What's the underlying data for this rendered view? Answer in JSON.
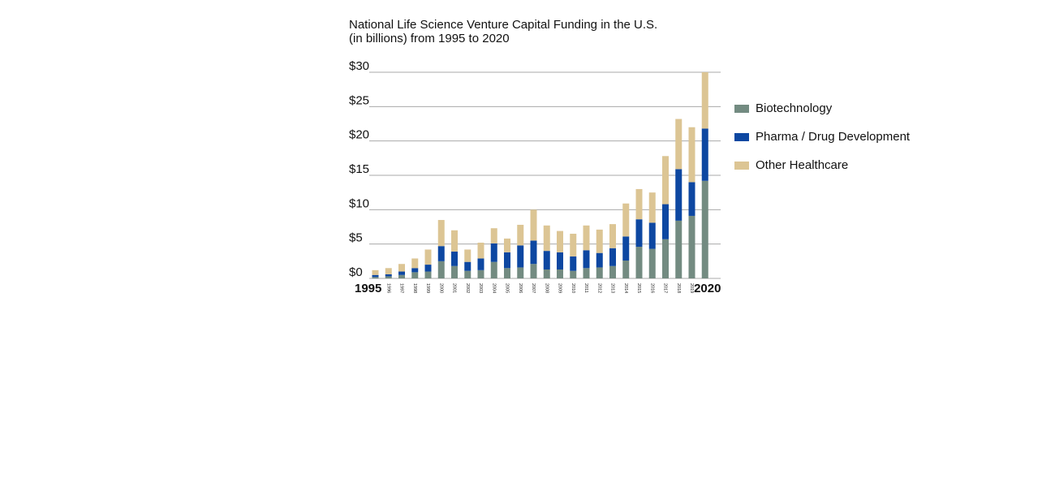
{
  "chart_data": {
    "type": "bar",
    "stacked": true,
    "title": "National Life Science Venture Capital Funding in the U.S.",
    "subtitle": "(in billions) from 1995 to 2020",
    "xlabel": "",
    "ylabel": "",
    "ylim": [
      0,
      30
    ],
    "yticks": [
      "$0",
      "$5",
      "$10",
      "$15",
      "$20",
      "$25",
      "$30"
    ],
    "ytick_values": [
      0,
      5,
      10,
      15,
      20,
      25,
      30
    ],
    "grid": true,
    "legend_position": "right",
    "categories": [
      "1995",
      "1996",
      "1997",
      "1998",
      "1999",
      "2000",
      "2001",
      "2002",
      "2003",
      "2004",
      "2005",
      "2006",
      "2007",
      "2008",
      "2009",
      "2010",
      "2011",
      "2012",
      "2013",
      "2014",
      "2015",
      "2016",
      "2017",
      "2018",
      "2019",
      "2020"
    ],
    "series": [
      {
        "name": "Biotechnology",
        "color": "#738b81",
        "values": [
          0.2,
          0.3,
          0.5,
          0.9,
          1.0,
          2.5,
          1.8,
          1.1,
          1.2,
          2.4,
          1.5,
          1.6,
          2.1,
          1.3,
          1.3,
          1.1,
          1.5,
          1.6,
          1.8,
          2.6,
          4.6,
          4.3,
          5.7,
          8.4,
          9.1,
          14.2
        ]
      },
      {
        "name": "Pharma / Drug Development",
        "color": "#0d47a1",
        "values": [
          0.3,
          0.3,
          0.5,
          0.6,
          1.0,
          2.2,
          2.1,
          1.3,
          1.7,
          2.7,
          2.3,
          3.2,
          3.4,
          2.7,
          2.5,
          2.1,
          2.6,
          2.1,
          2.6,
          3.5,
          4.0,
          3.8,
          5.1,
          7.5,
          4.9,
          7.6
        ]
      },
      {
        "name": "Other Healthcare",
        "color": "#dcc594",
        "values": [
          0.7,
          0.9,
          1.1,
          1.4,
          2.2,
          3.8,
          3.1,
          1.8,
          2.3,
          2.2,
          2.0,
          3.0,
          4.5,
          3.7,
          3.1,
          3.3,
          3.6,
          3.4,
          3.5,
          4.8,
          4.4,
          4.4,
          7.0,
          7.3,
          8.0,
          8.2
        ]
      }
    ],
    "x_tick_major": {
      "1995": true,
      "2020": true
    }
  }
}
